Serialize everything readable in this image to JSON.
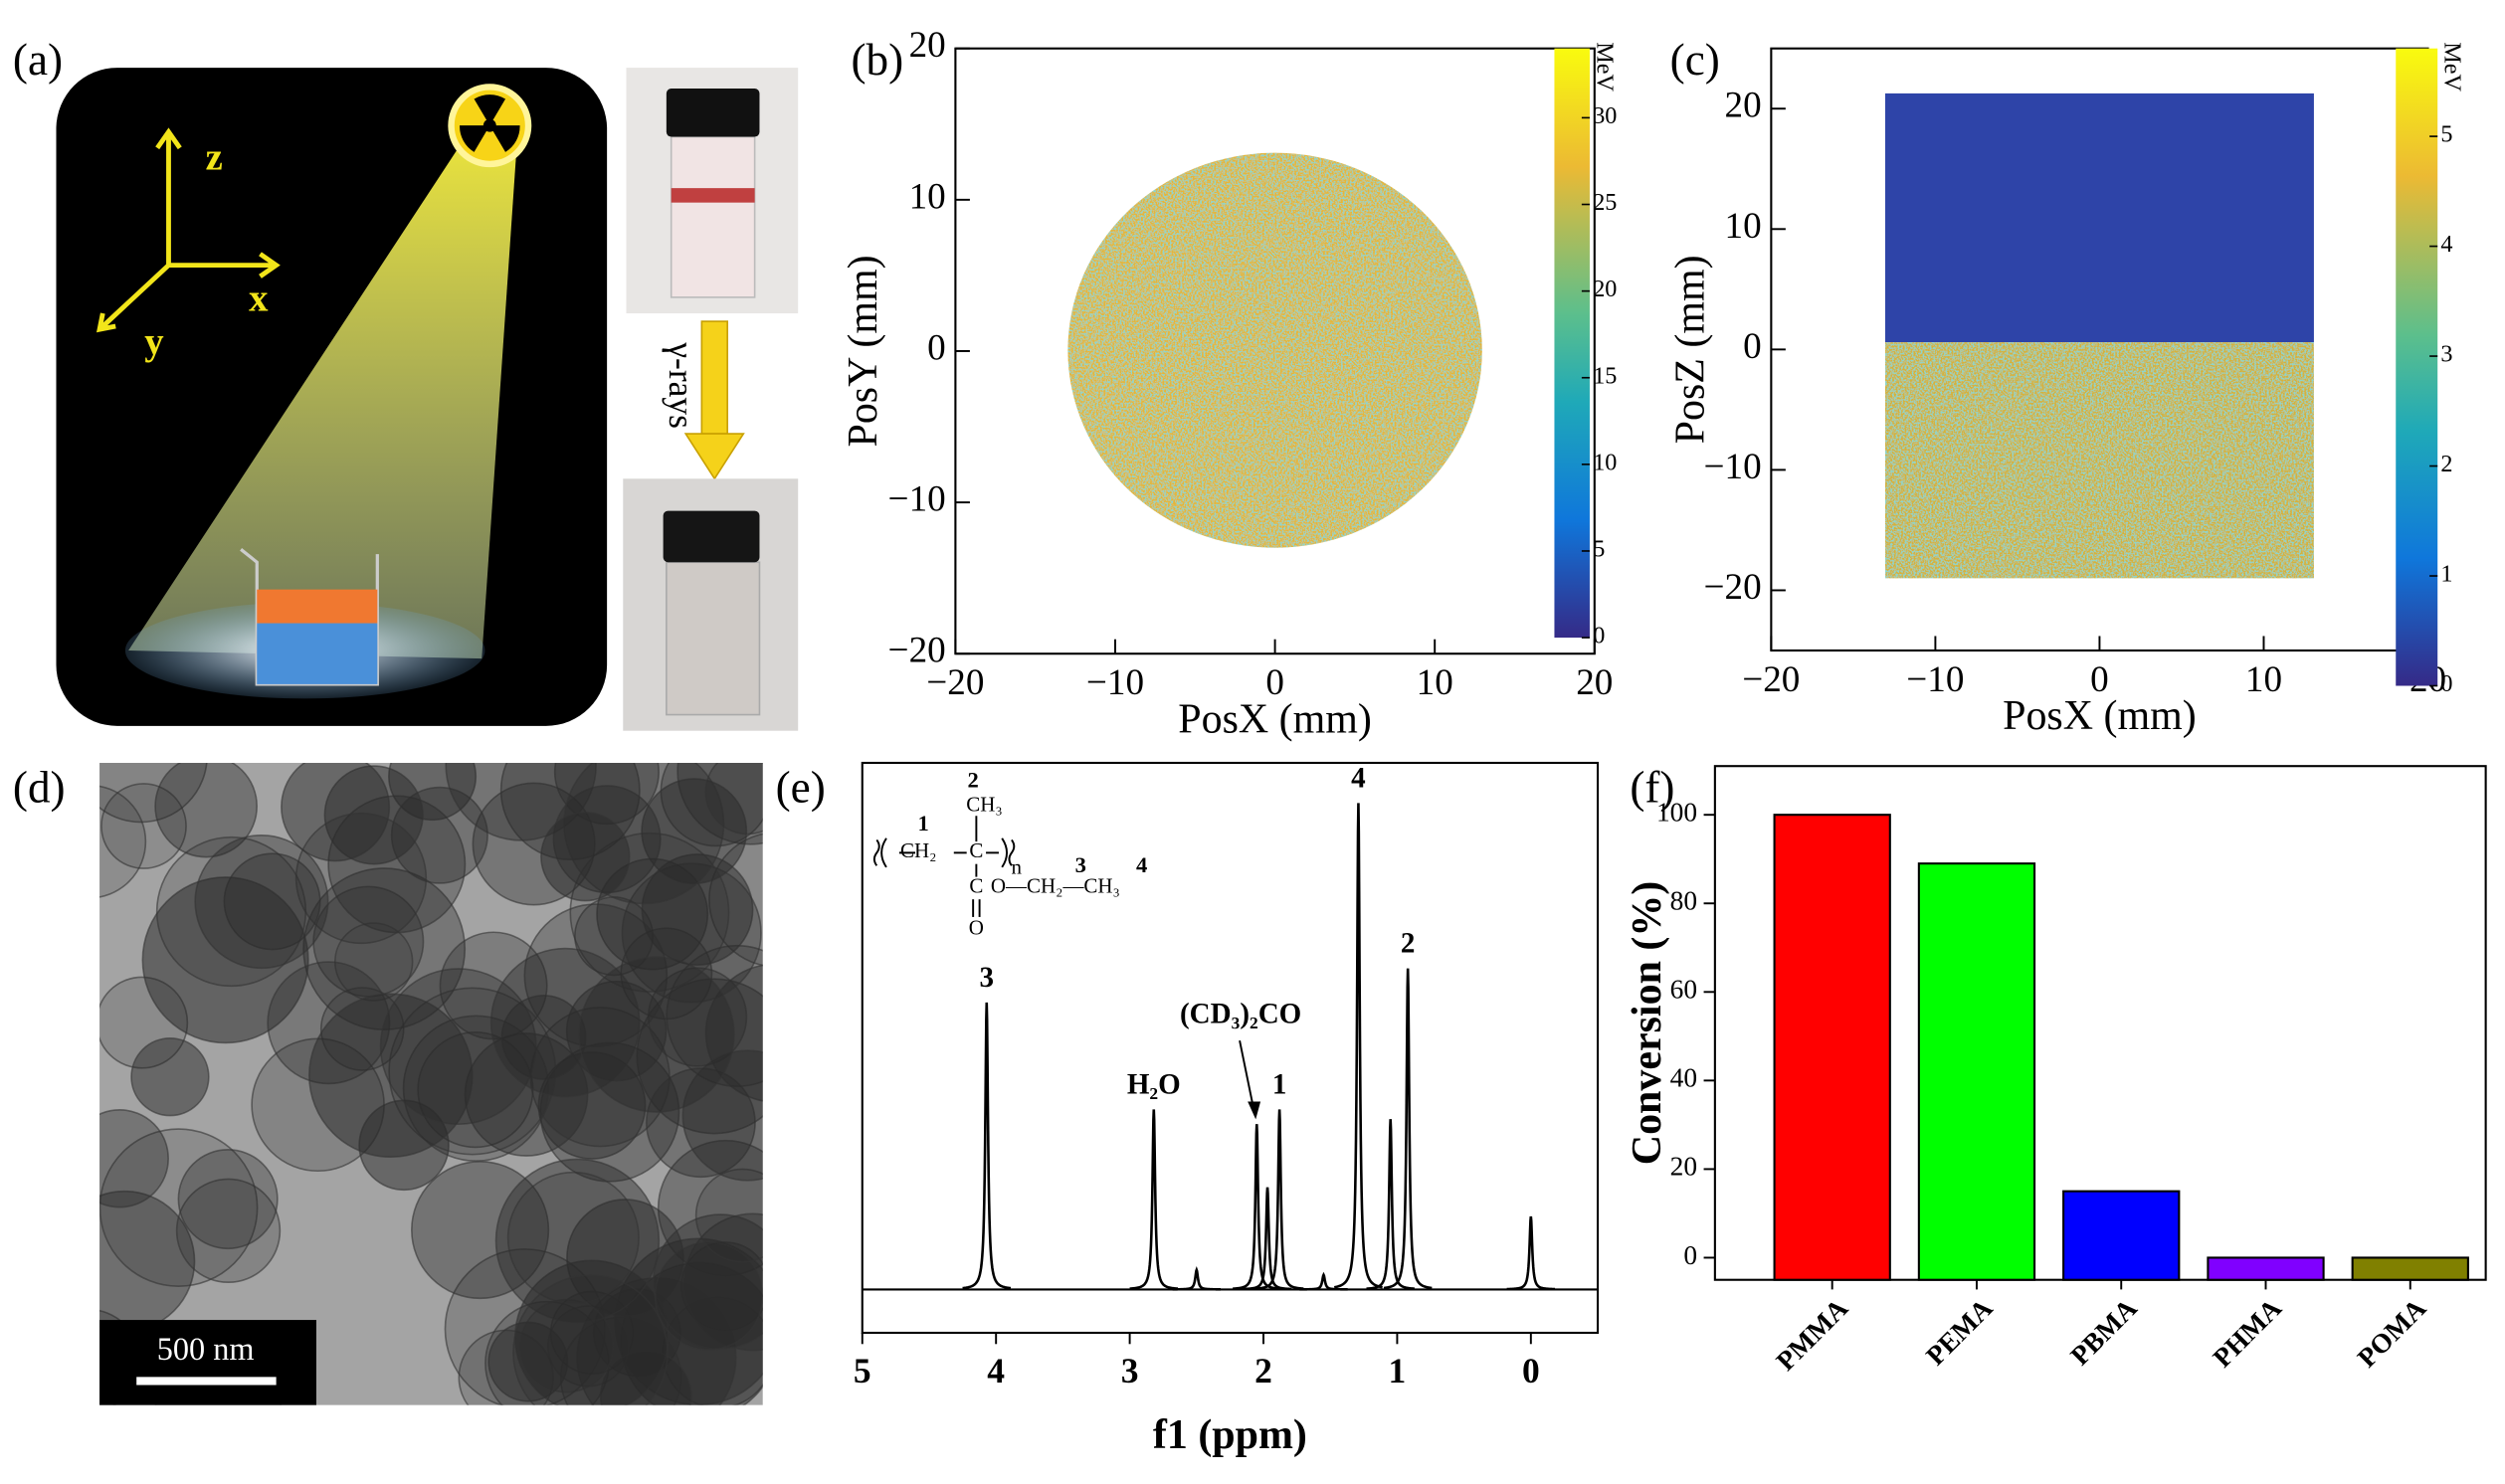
{
  "panel_a": {
    "label": "(a)",
    "axes": [
      "z",
      "x",
      "y"
    ],
    "arrow_label": "γ-rays"
  },
  "panel_d": {
    "label": "(d)",
    "scale_bar": "500 nm"
  },
  "chart_data": [
    {
      "type": "heatmap",
      "label": "(b)",
      "x_label": "PosX (mm)",
      "y_label": "PosY (mm)",
      "xlim": [
        -20,
        20
      ],
      "xticks": [
        {
          "value": -20,
          "label": "−20"
        },
        {
          "value": -10,
          "label": "−10"
        },
        0,
        10,
        20
      ],
      "ylim": [
        -20,
        20
      ],
      "yticks": [
        {
          "value": -20,
          "label": "−20"
        },
        {
          "value": -10,
          "label": "−10"
        },
        0,
        10,
        20
      ],
      "colorbar_label": "MeV",
      "clim": [
        0,
        34
      ],
      "cticks": [
        0,
        5,
        10,
        15,
        20,
        25,
        30
      ]
    },
    {
      "type": "heatmap",
      "label": "(c)",
      "x_label": "PosX (mm)",
      "y_label": "PosZ (mm)",
      "xlim": [
        -20,
        20
      ],
      "xticks": [
        {
          "value": -20,
          "label": "−20"
        },
        {
          "value": -10,
          "label": "−10"
        },
        0,
        10,
        20
      ],
      "ylim": [
        -25,
        25
      ],
      "yticks": [
        {
          "value": -20,
          "label": "−20"
        },
        {
          "value": -10,
          "label": "−10"
        },
        0,
        10,
        20
      ],
      "colorbar_label": "MeV",
      "clim": [
        0,
        5.8
      ],
      "cticks": [
        0,
        1,
        2,
        3,
        4,
        5
      ]
    },
    {
      "type": "spectrum",
      "label": "(e)",
      "x_label": "f1 (ppm)",
      "xlim": [
        5,
        -0.5
      ],
      "xticks": [
        5,
        4,
        3,
        2,
        1,
        0
      ],
      "structure": [
        "1",
        "2",
        "CH₃",
        "CH₂",
        "C",
        "n",
        "C",
        "O—CH₂—CH₃",
        "O",
        "3",
        "4"
      ],
      "peaks": {
        "x": [
          4.07,
          2.82,
          2.5,
          2.05,
          1.97,
          1.88,
          1.55,
          1.29,
          1.05,
          0.92,
          0
        ],
        "intensity": [
          59,
          37,
          4,
          34,
          21,
          37,
          3,
          100,
          35,
          66,
          15
        ],
        "labels": [
          "3",
          "H₂O",
          null,
          "(CD₃)₂CO",
          null,
          "1",
          null,
          "4",
          null,
          "2",
          null
        ]
      }
    },
    {
      "type": "bar",
      "label": "(f)",
      "y_label": "Conversion (%)",
      "categories": [
        "PMMA",
        "PEMA",
        "PBMA",
        "PHMA",
        "POMA"
      ],
      "values": [
        100,
        89,
        15,
        0,
        0
      ],
      "colors": [
        "#ff0000",
        "#00ff00",
        "#0000ff",
        "#8000ff",
        "#808000"
      ],
      "ylim": [
        -5,
        111
      ],
      "yticks": [
        0,
        20,
        40,
        60,
        80,
        100
      ]
    }
  ]
}
